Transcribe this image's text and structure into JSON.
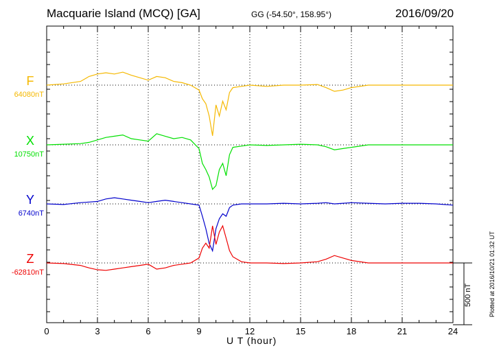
{
  "header": {
    "title": "Macquarie Island (MCQ)  [GA]",
    "coords": "GG (-54.50°, 158.95°)",
    "date": "2016/09/20"
  },
  "footer": {
    "plotted": "Plotted at 2016/10/21 01:32 UT",
    "scale_label": "500 nT"
  },
  "chart_data": {
    "type": "line",
    "title": "Macquarie Island (MCQ)  [GA]",
    "xlabel": "U T (hour)",
    "ylabel": "",
    "xlim": [
      0,
      24
    ],
    "xticks": [
      0,
      3,
      6,
      9,
      12,
      15,
      18,
      21,
      24
    ],
    "grid": true,
    "scale_bar_nT": 500,
    "series": [
      {
        "name": "F",
        "baseline_label": "64080nT",
        "color": "#f5b800",
        "x": [
          0,
          1,
          2,
          2.5,
          3,
          3.5,
          4,
          4.5,
          5,
          5.5,
          6,
          6.5,
          7,
          7.5,
          8,
          8.5,
          9,
          9.2,
          9.4,
          9.6,
          9.8,
          10,
          10.2,
          10.4,
          10.6,
          10.8,
          11,
          11.5,
          12,
          13,
          14,
          15,
          16,
          16.5,
          17,
          17.5,
          18,
          19,
          20,
          21,
          22,
          23,
          24
        ],
        "y": [
          0,
          10,
          30,
          70,
          90,
          100,
          90,
          105,
          80,
          60,
          40,
          70,
          60,
          30,
          20,
          0,
          -40,
          -110,
          -150,
          -250,
          -410,
          -160,
          -250,
          -130,
          -200,
          -60,
          -20,
          -10,
          0,
          -10,
          0,
          0,
          5,
          -20,
          -50,
          -40,
          -20,
          0,
          0,
          0,
          0,
          0,
          0
        ]
      },
      {
        "name": "X",
        "baseline_label": "10750nT",
        "color": "#00e000",
        "x": [
          0,
          1,
          2,
          2.5,
          3,
          3.5,
          4,
          4.5,
          5,
          5.5,
          6,
          6.5,
          7,
          7.5,
          8,
          8.5,
          9,
          9.2,
          9.4,
          9.6,
          9.8,
          10,
          10.2,
          10.4,
          10.6,
          10.8,
          11,
          11.5,
          12,
          13,
          14,
          15,
          16,
          16.5,
          17,
          17.5,
          18,
          19,
          20,
          21,
          22,
          23,
          24
        ],
        "y": [
          0,
          5,
          10,
          20,
          40,
          60,
          70,
          80,
          50,
          40,
          30,
          90,
          70,
          50,
          60,
          40,
          -30,
          -150,
          -200,
          -260,
          -360,
          -330,
          -200,
          -150,
          -250,
          -80,
          -20,
          -10,
          0,
          -5,
          0,
          5,
          0,
          -15,
          -40,
          -30,
          -20,
          0,
          0,
          0,
          0,
          0,
          0
        ]
      },
      {
        "name": "Y",
        "baseline_label": "6740nT",
        "color": "#0000cc",
        "x": [
          0,
          1,
          2,
          2.5,
          3,
          3.5,
          4,
          4.5,
          5,
          5.5,
          6,
          6.5,
          7,
          7.5,
          8,
          8.5,
          9,
          9.2,
          9.4,
          9.6,
          9.8,
          10,
          10.2,
          10.4,
          10.6,
          10.8,
          11,
          11.5,
          12,
          13,
          14,
          15,
          16,
          16.5,
          17,
          17.5,
          18,
          19,
          20,
          21,
          22,
          23,
          24
        ],
        "y": [
          0,
          -5,
          10,
          15,
          20,
          40,
          50,
          40,
          30,
          20,
          10,
          20,
          30,
          20,
          10,
          0,
          -10,
          -100,
          -200,
          -320,
          -380,
          -200,
          -120,
          -80,
          -100,
          -30,
          -10,
          0,
          0,
          0,
          5,
          0,
          5,
          10,
          0,
          5,
          10,
          5,
          0,
          5,
          5,
          0,
          -10
        ]
      },
      {
        "name": "Z",
        "baseline_label": "-62810nT",
        "color": "#ee0000",
        "x": [
          0,
          1,
          2,
          2.5,
          3,
          3.5,
          4,
          4.5,
          5,
          5.5,
          6,
          6.5,
          7,
          7.5,
          8,
          8.5,
          9,
          9.2,
          9.4,
          9.6,
          9.8,
          10,
          10.2,
          10.4,
          10.6,
          10.8,
          11,
          11.5,
          12,
          13,
          14,
          15,
          16,
          16.5,
          17,
          17.5,
          18,
          19,
          20,
          21,
          22,
          23,
          24
        ],
        "y": [
          0,
          -5,
          -20,
          -40,
          -55,
          -60,
          -50,
          -40,
          -30,
          -20,
          -10,
          -50,
          -40,
          -20,
          -10,
          0,
          40,
          120,
          160,
          120,
          300,
          150,
          250,
          300,
          200,
          100,
          50,
          10,
          0,
          0,
          -5,
          0,
          10,
          30,
          60,
          40,
          20,
          0,
          0,
          0,
          0,
          0,
          0
        ]
      }
    ]
  }
}
